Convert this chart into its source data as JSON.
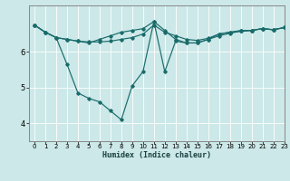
{
  "xlabel": "Humidex (Indice chaleur)",
  "bg_color": "#cce8e8",
  "line_color": "#1a6b6b",
  "grid_color": "#ffffff",
  "xlim": [
    -0.5,
    23
  ],
  "ylim": [
    3.5,
    7.3
  ],
  "yticks": [
    4,
    5,
    6
  ],
  "xticks": [
    0,
    1,
    2,
    3,
    4,
    5,
    6,
    7,
    8,
    9,
    10,
    11,
    12,
    13,
    14,
    15,
    16,
    17,
    18,
    19,
    20,
    21,
    22,
    23
  ],
  "lines": [
    {
      "x": [
        0,
        1,
        2,
        3,
        4,
        5,
        6,
        7,
        8,
        9,
        10,
        11,
        12,
        13,
        14,
        15,
        16,
        17,
        18,
        19,
        20,
        21,
        22,
        23
      ],
      "y": [
        6.75,
        6.55,
        6.4,
        6.35,
        6.3,
        6.28,
        6.28,
        6.3,
        6.35,
        6.4,
        6.5,
        6.75,
        6.55,
        6.45,
        6.35,
        6.32,
        6.38,
        6.5,
        6.55,
        6.6,
        6.6,
        6.65,
        6.62,
        6.68
      ]
    },
    {
      "x": [
        0,
        1,
        2,
        3,
        4,
        5,
        6,
        7,
        8,
        9,
        10,
        11,
        12,
        13,
        14,
        15,
        16,
        17,
        18,
        19,
        20,
        21,
        22,
        23
      ],
      "y": [
        6.75,
        6.55,
        6.4,
        6.35,
        6.3,
        6.25,
        6.35,
        6.45,
        6.55,
        6.6,
        6.65,
        6.85,
        6.6,
        6.35,
        6.25,
        6.25,
        6.35,
        6.45,
        6.52,
        6.58,
        6.6,
        6.65,
        6.62,
        6.68
      ]
    },
    {
      "x": [
        0,
        1,
        2,
        3,
        4,
        5,
        6,
        7,
        8,
        9,
        10,
        11,
        12,
        13,
        14,
        15,
        16,
        17,
        18,
        19,
        20,
        21,
        22,
        23
      ],
      "y": [
        6.75,
        6.55,
        6.4,
        5.65,
        4.85,
        4.7,
        4.6,
        4.35,
        4.1,
        5.05,
        5.45,
        6.85,
        5.45,
        6.3,
        6.25,
        6.25,
        6.35,
        6.5,
        6.55,
        6.58,
        6.6,
        6.65,
        6.62,
        6.68
      ]
    }
  ]
}
